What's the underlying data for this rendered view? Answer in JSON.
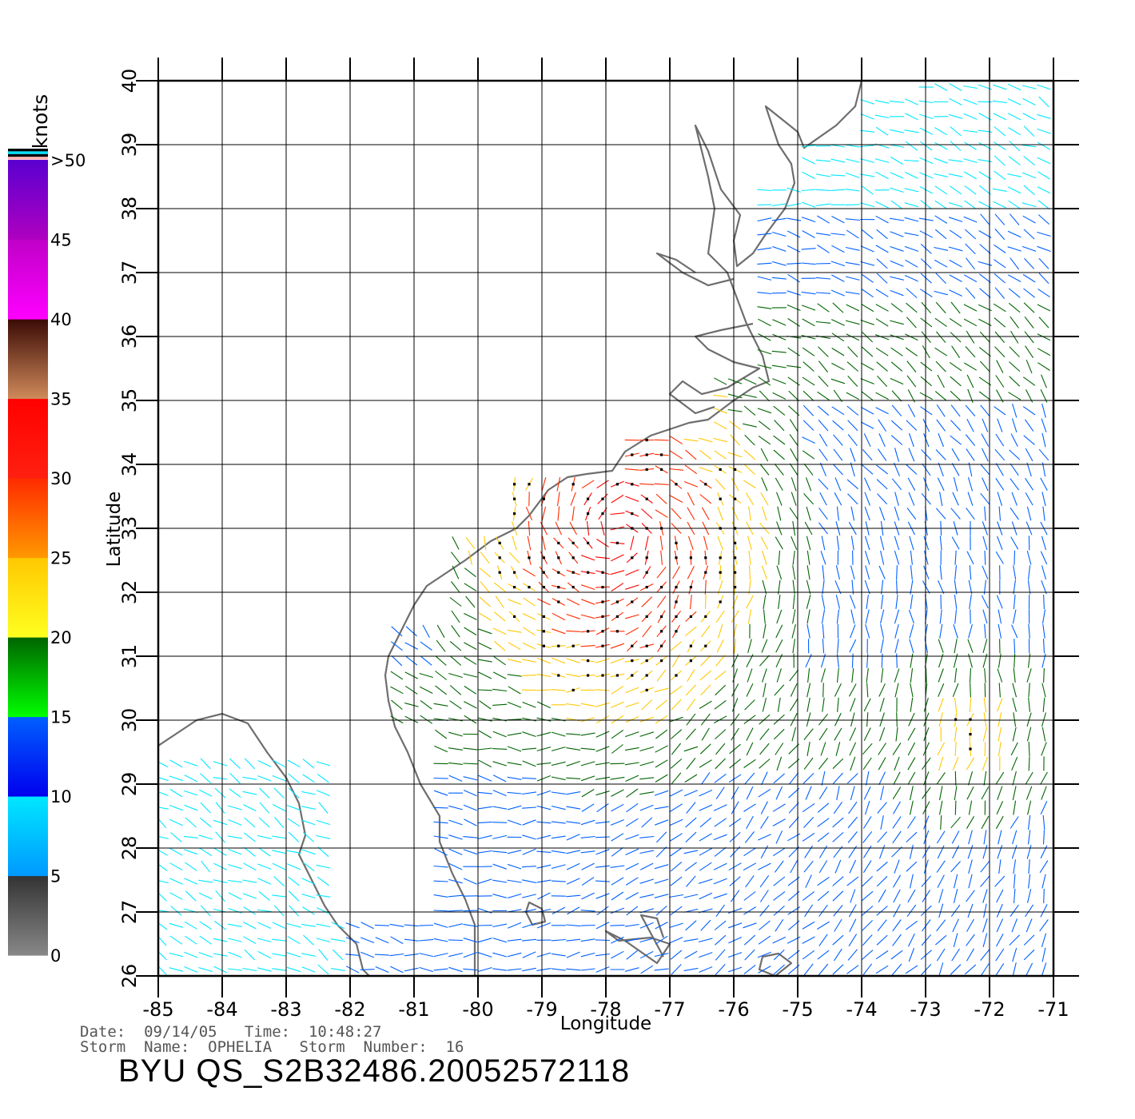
{
  "map": {
    "x_label": "Longitude",
    "y_label": "Latitude",
    "lon_ticks": [
      "-85",
      "-84",
      "-83",
      "-82",
      "-81",
      "-80",
      "-79",
      "-78",
      "-77",
      "-76",
      "-75",
      "-74",
      "-73",
      "-72",
      "-71"
    ],
    "lat_ticks": [
      "26",
      "27",
      "28",
      "29",
      "30",
      "31",
      "32",
      "33",
      "34",
      "35",
      "36",
      "37",
      "38",
      "39",
      "40"
    ],
    "lon_range": [
      -85,
      -71
    ],
    "lat_range": [
      26,
      40
    ],
    "grid": true,
    "coastline_color": "#6e6e6e"
  },
  "legend": {
    "unit": "knots",
    "labels": [
      "0",
      "5",
      "10",
      "15",
      "20",
      "25",
      "30",
      "35",
      "40",
      "45",
      ">50"
    ],
    "bands": [
      {
        "from": 0,
        "to": 5,
        "top": "#333333",
        "bottom": "#888888"
      },
      {
        "from": 5,
        "to": 10,
        "top": "#00e8ff",
        "bottom": "#0099ff"
      },
      {
        "from": 10,
        "to": 15,
        "top": "#0060ff",
        "bottom": "#0000ee"
      },
      {
        "from": 15,
        "to": 20,
        "top": "#006400",
        "bottom": "#00ff00"
      },
      {
        "from": 20,
        "to": 25,
        "top": "#ffc800",
        "bottom": "#ffff20"
      },
      {
        "from": 25,
        "to": 30,
        "top": "#ff2a00",
        "bottom": "#ff9900"
      },
      {
        "from": 30,
        "to": 35,
        "top": "#ff0000",
        "bottom": "#ff2010"
      },
      {
        "from": 35,
        "to": 40,
        "top": "#3a0a05",
        "bottom": "#d08a5a"
      },
      {
        "from": 40,
        "to": 45,
        "top": "#c000c8",
        "bottom": "#ff00ff"
      },
      {
        "from": 45,
        "to": 50,
        "top": "#5a00d0",
        "bottom": "#b000c0"
      }
    ],
    "top_swatches": [
      "#000000",
      "#00e0ff",
      "#000000",
      "#ffb0b0"
    ]
  },
  "footer": {
    "date_line": "Date:  09/14/05   Time:  10:48:27",
    "storm_line": "Storm  Name:  OPHELIA   Storm  Number:  16",
    "product_id": "BYU  QS_S2B32486.20052572118"
  }
}
